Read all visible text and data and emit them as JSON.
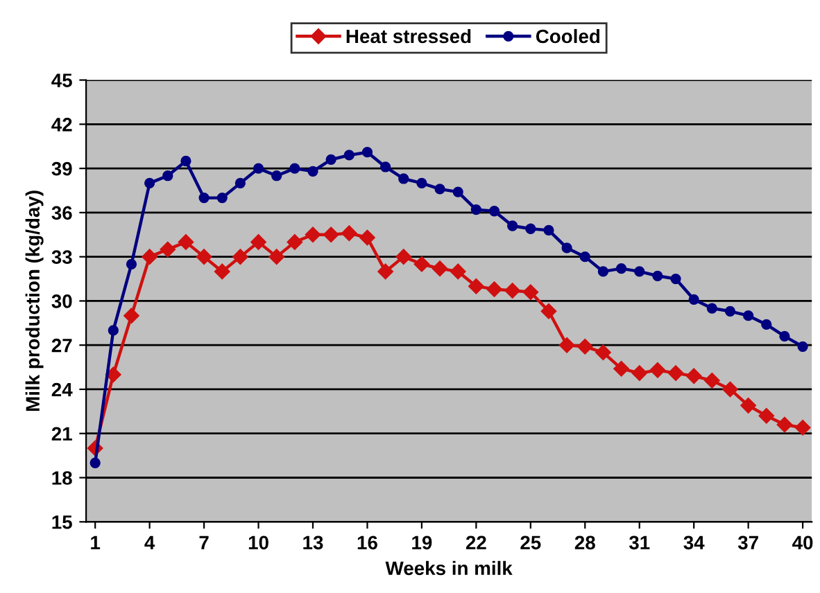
{
  "chart_data": {
    "type": "line",
    "xlabel": "Weeks in milk",
    "ylabel": "Milk production (kg/day)",
    "x": [
      1,
      2,
      3,
      4,
      5,
      6,
      7,
      8,
      9,
      10,
      11,
      12,
      13,
      14,
      15,
      16,
      17,
      18,
      19,
      20,
      21,
      22,
      23,
      24,
      25,
      26,
      27,
      28,
      29,
      30,
      31,
      32,
      33,
      34,
      35,
      36,
      37,
      38,
      39,
      40
    ],
    "series": [
      {
        "name": "Heat stressed",
        "color": "#d01010",
        "marker": "diamond",
        "values": [
          20,
          25,
          29,
          33,
          33.5,
          34,
          33,
          32,
          33,
          34,
          33,
          34,
          34.5,
          34.5,
          34.6,
          34.3,
          32,
          33,
          32.5,
          32.2,
          32,
          31,
          30.8,
          30.7,
          30.6,
          29.3,
          27,
          26.9,
          26.5,
          25.4,
          25.1,
          25.3,
          25.1,
          24.9,
          24.6,
          24,
          22.9,
          22.2,
          21.6,
          21.4
        ]
      },
      {
        "name": "Cooled",
        "color": "#000080",
        "marker": "circle",
        "values": [
          19,
          28,
          32.5,
          38,
          38.5,
          39.5,
          37,
          37,
          38,
          39,
          38.5,
          39,
          38.8,
          39.6,
          39.9,
          40.1,
          39.1,
          38.3,
          38,
          37.6,
          37.4,
          36.2,
          36.1,
          35.1,
          34.9,
          34.8,
          33.6,
          33,
          32,
          32.2,
          32,
          31.7,
          31.5,
          30.1,
          29.5,
          29.3,
          29,
          28.4,
          27.6,
          26.9
        ]
      }
    ],
    "xlim": [
      0.5,
      40.5
    ],
    "xticks": [
      1,
      4,
      7,
      10,
      13,
      16,
      19,
      22,
      25,
      28,
      31,
      34,
      37,
      40
    ],
    "ylim": [
      15,
      45
    ],
    "yticks": [
      15,
      18,
      21,
      24,
      27,
      30,
      33,
      36,
      39,
      42,
      45
    ],
    "grid": "y",
    "legend": "top",
    "line_style": "solid"
  }
}
